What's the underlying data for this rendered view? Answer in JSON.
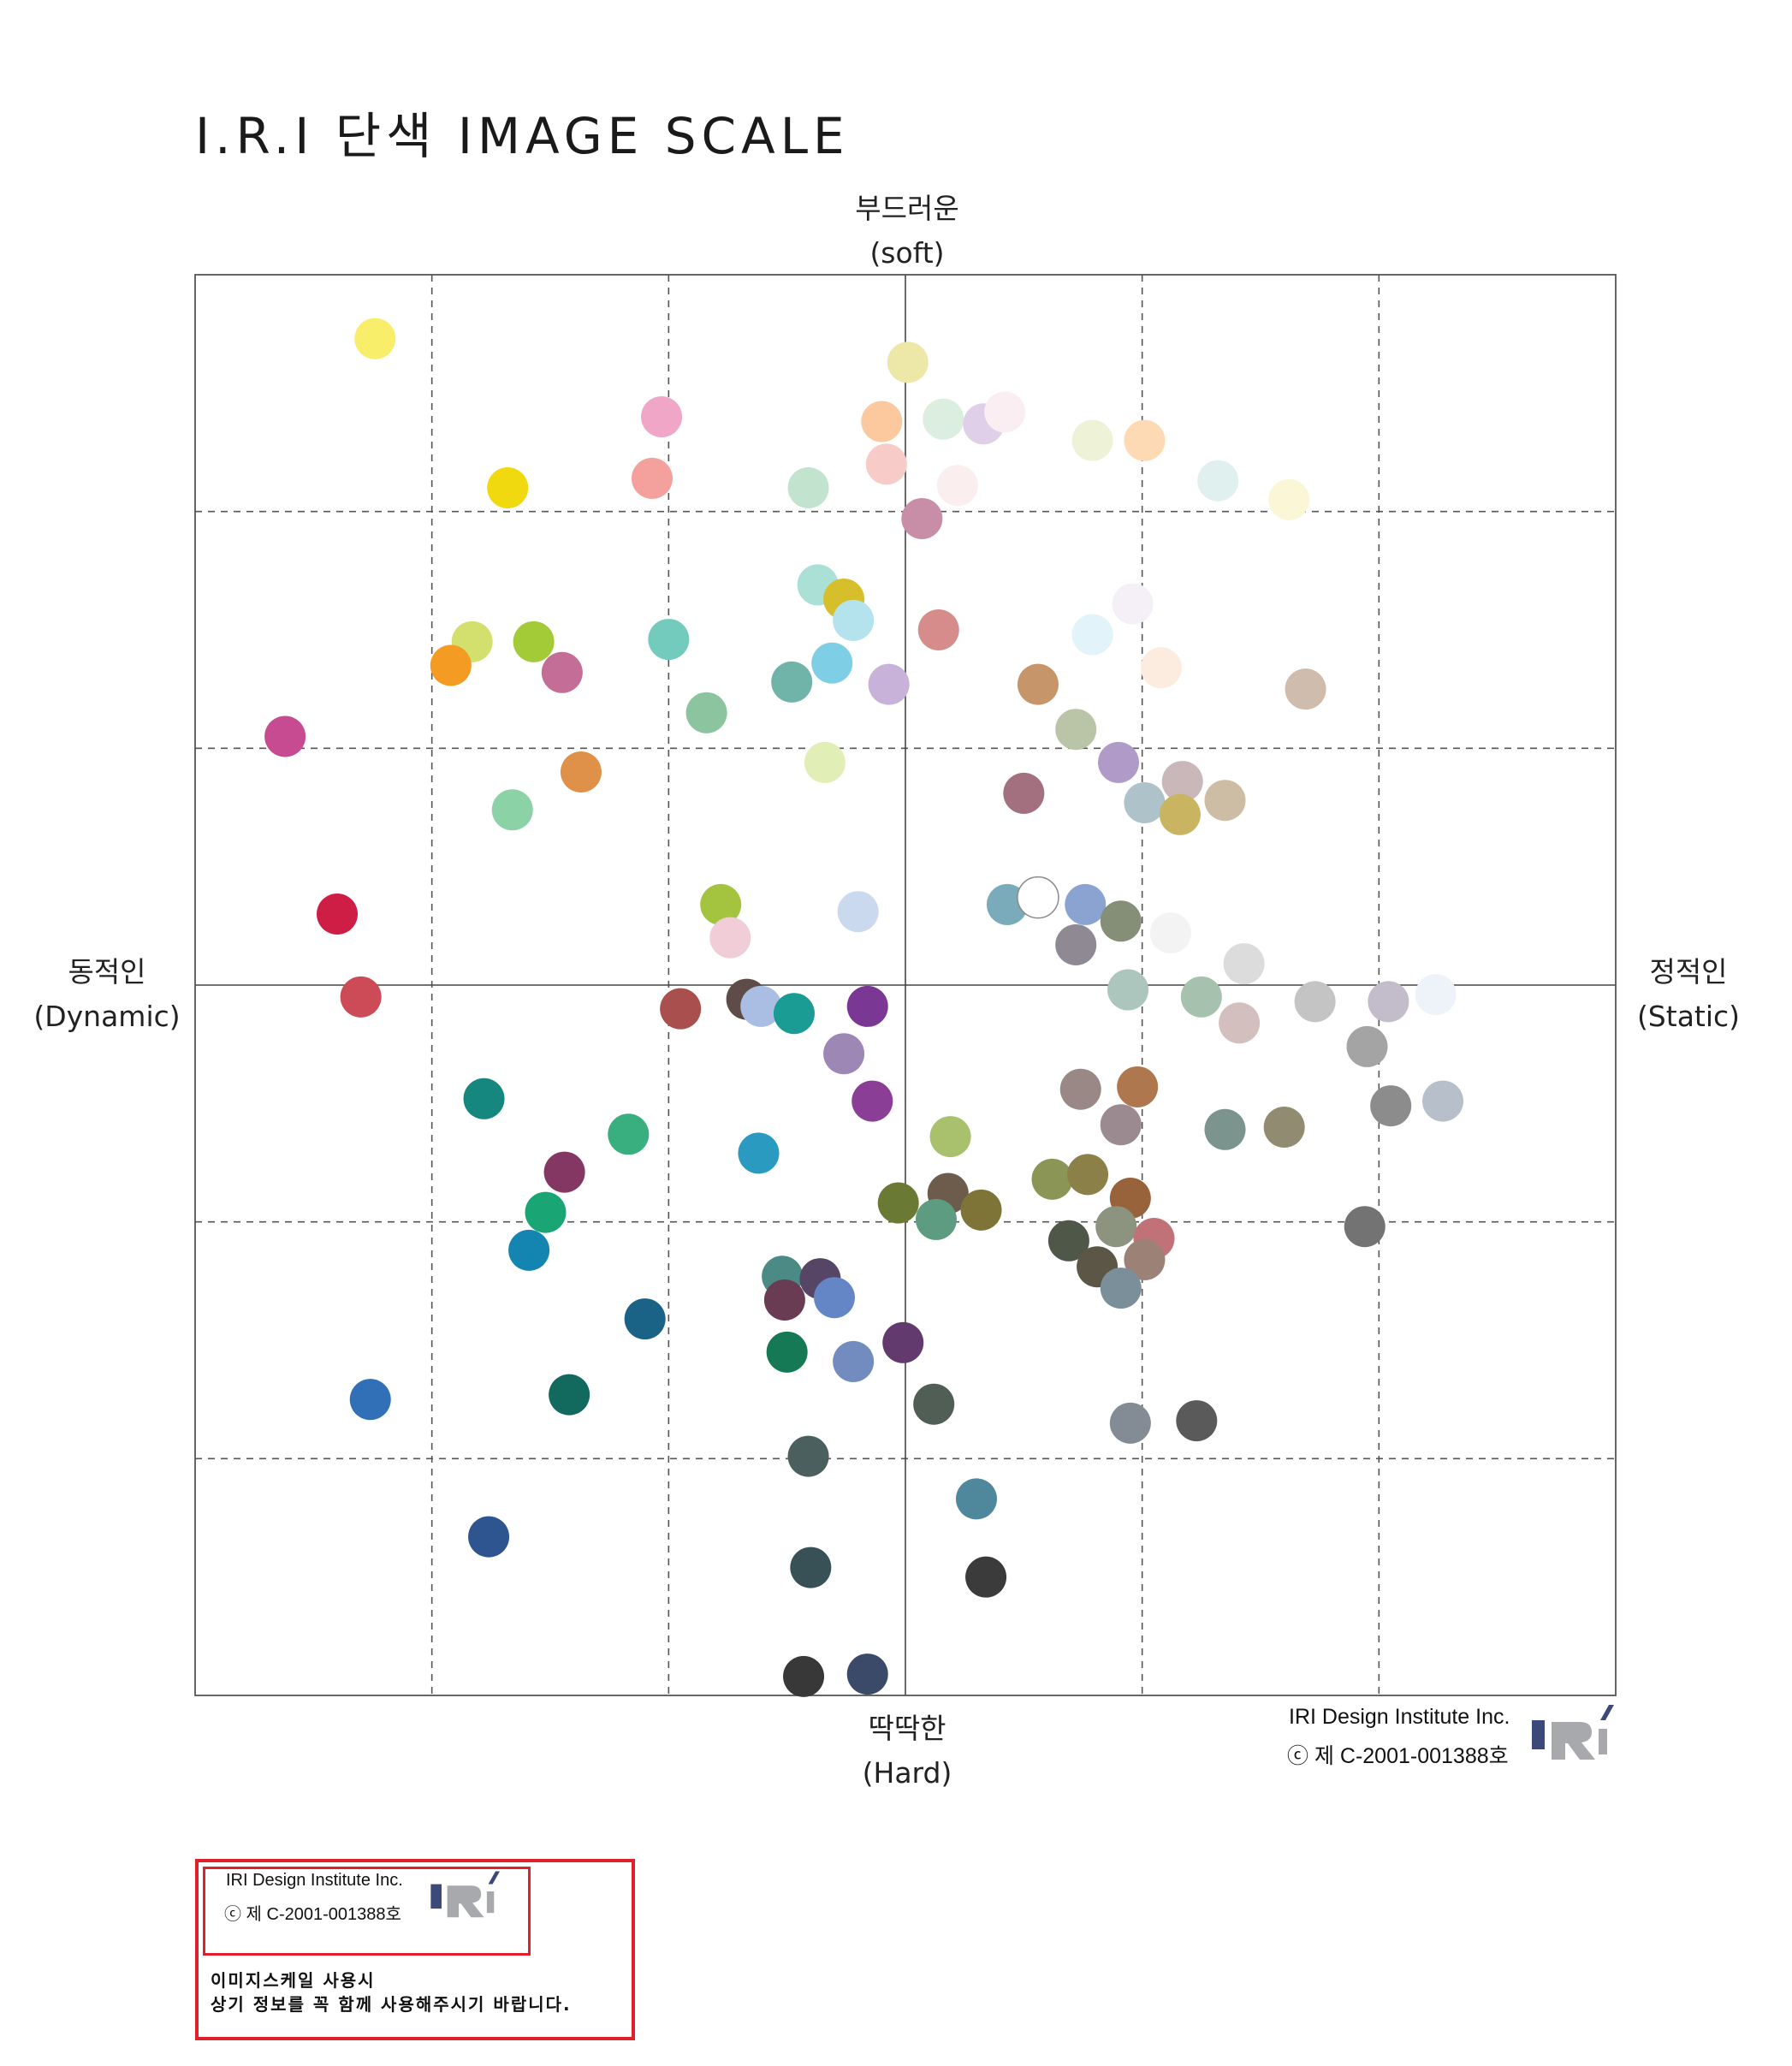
{
  "title": "I.R.I 단색 IMAGE SCALE",
  "axes": {
    "top": {
      "ko": "부드러운",
      "en": "(soft)"
    },
    "bottom": {
      "ko": "딱딱한",
      "en": "(Hard)"
    },
    "left": {
      "ko": "동적인",
      "en": "(Dynamic)"
    },
    "right": {
      "ko": "정적인",
      "en": "(Static)"
    }
  },
  "credit": {
    "company": "IRI Design Institute Inc.",
    "copyright": "ⓒ 제 C-2001-001388호",
    "logo_text": "IRI"
  },
  "notice": {
    "company": "IRI Design Institute Inc.",
    "copyright": "ⓒ 제 C-2001-001388호",
    "line1": "이미지스케일 사용시",
    "line2": "상기 정보를 꼭 함께 사용해주시기 바랍니다."
  },
  "colors": {
    "accent": "#e0202a",
    "logo_navy": "#3b4a78",
    "logo_gray": "#a7a9ac",
    "grid": "#555555"
  },
  "chart_data": {
    "type": "scatter",
    "title": "I.R.I 단색 IMAGE SCALE",
    "xlabel": "동적인 (Dynamic) ↔ 정적인 (Static)",
    "ylabel": "딱딱한 (Hard) ↔ 부드러운 (soft)",
    "xlim": [
      -3,
      3
    ],
    "ylim": [
      -3,
      3
    ],
    "grid": "dashed, step 1",
    "points": [
      {
        "x": -2.24,
        "y": 2.73,
        "color": "#f8ee6a"
      },
      {
        "x": 0.01,
        "y": 2.63,
        "color": "#ede7a8"
      },
      {
        "x": -1.03,
        "y": 2.4,
        "color": "#f0a6c6"
      },
      {
        "x": -0.1,
        "y": 2.38,
        "color": "#fcc89d"
      },
      {
        "x": 0.16,
        "y": 2.39,
        "color": "#dbeedf"
      },
      {
        "x": 0.33,
        "y": 2.37,
        "color": "#e0cfe9"
      },
      {
        "x": 0.42,
        "y": 2.42,
        "color": "#fbeef3"
      },
      {
        "x": 0.79,
        "y": 2.3,
        "color": "#eef3d8"
      },
      {
        "x": 1.01,
        "y": 2.3,
        "color": "#fdd9b4"
      },
      {
        "x": -1.68,
        "y": 2.1,
        "color": "#f0d90f"
      },
      {
        "x": -1.07,
        "y": 2.14,
        "color": "#f4a19d"
      },
      {
        "x": -0.08,
        "y": 2.2,
        "color": "#f6cbc8"
      },
      {
        "x": 0.22,
        "y": 2.11,
        "color": "#fbeeee"
      },
      {
        "x": -0.41,
        "y": 2.1,
        "color": "#c2e3cd"
      },
      {
        "x": 1.32,
        "y": 2.13,
        "color": "#dff0ef"
      },
      {
        "x": 1.62,
        "y": 2.05,
        "color": "#fbf6d6"
      },
      {
        "x": 0.07,
        "y": 1.97,
        "color": "#c98ea7"
      },
      {
        "x": -0.37,
        "y": 1.69,
        "color": "#abe0d6"
      },
      {
        "x": -0.26,
        "y": 1.63,
        "color": "#d6bf2a"
      },
      {
        "x": -0.22,
        "y": 1.54,
        "color": "#b4e3ee"
      },
      {
        "x": 0.14,
        "y": 1.5,
        "color": "#d78c8c"
      },
      {
        "x": 0.96,
        "y": 1.61,
        "color": "#f5f0f8"
      },
      {
        "x": 0.79,
        "y": 1.48,
        "color": "#e3f3fa"
      },
      {
        "x": -1.83,
        "y": 1.45,
        "color": "#d4e06e"
      },
      {
        "x": -1.57,
        "y": 1.45,
        "color": "#a3cb38"
      },
      {
        "x": -1.0,
        "y": 1.46,
        "color": "#72cbbd"
      },
      {
        "x": -1.92,
        "y": 1.35,
        "color": "#f49b23"
      },
      {
        "x": -1.45,
        "y": 1.32,
        "color": "#c36d97"
      },
      {
        "x": -0.48,
        "y": 1.28,
        "color": "#6fb3a9"
      },
      {
        "x": -0.31,
        "y": 1.36,
        "color": "#7ecfe6"
      },
      {
        "x": -0.07,
        "y": 1.27,
        "color": "#c8b2d9"
      },
      {
        "x": 0.56,
        "y": 1.27,
        "color": "#c7956a"
      },
      {
        "x": 1.08,
        "y": 1.34,
        "color": "#fcecdf"
      },
      {
        "x": 1.69,
        "y": 1.25,
        "color": "#d0bcad"
      },
      {
        "x": -0.84,
        "y": 1.15,
        "color": "#8cc4a0"
      },
      {
        "x": 0.72,
        "y": 1.08,
        "color": "#b9c5a6"
      },
      {
        "x": -2.62,
        "y": 1.05,
        "color": "#c74b90"
      },
      {
        "x": -1.37,
        "y": 0.9,
        "color": "#df9049"
      },
      {
        "x": -0.34,
        "y": 0.94,
        "color": "#e1eeb6"
      },
      {
        "x": 0.9,
        "y": 0.94,
        "color": "#b09bc8"
      },
      {
        "x": 1.17,
        "y": 0.86,
        "color": "#c9b7ba"
      },
      {
        "x": -1.66,
        "y": 0.74,
        "color": "#8bd2a6"
      },
      {
        "x": 0.5,
        "y": 0.81,
        "color": "#a3707f"
      },
      {
        "x": 1.01,
        "y": 0.77,
        "color": "#adc2c9"
      },
      {
        "x": 1.16,
        "y": 0.72,
        "color": "#c8b461"
      },
      {
        "x": 1.35,
        "y": 0.78,
        "color": "#cdbda5"
      },
      {
        "x": -2.4,
        "y": 0.3,
        "color": "#cf1e45"
      },
      {
        "x": -0.78,
        "y": 0.34,
        "color": "#a4c43f"
      },
      {
        "x": -0.2,
        "y": 0.31,
        "color": "#cbd9ef"
      },
      {
        "x": 0.43,
        "y": 0.34,
        "color": "#7aabbb"
      },
      {
        "x": 0.56,
        "y": 0.37,
        "color": "#ffffff",
        "outline": true
      },
      {
        "x": 0.76,
        "y": 0.34,
        "color": "#8ba3d0"
      },
      {
        "x": 0.91,
        "y": 0.27,
        "color": "#858f78"
      },
      {
        "x": -0.74,
        "y": 0.2,
        "color": "#f1cdd7"
      },
      {
        "x": 0.72,
        "y": 0.17,
        "color": "#8e8993"
      },
      {
        "x": 1.12,
        "y": 0.22,
        "color": "#f3f3f3"
      },
      {
        "x": 1.43,
        "y": 0.09,
        "color": "#dcdcdc"
      },
      {
        "x": -2.3,
        "y": -0.05,
        "color": "#cc4b56"
      },
      {
        "x": -0.95,
        "y": -0.1,
        "color": "#a9504f"
      },
      {
        "x": -0.67,
        "y": -0.06,
        "color": "#5f4c48"
      },
      {
        "x": -0.61,
        "y": -0.09,
        "color": "#a9bee2"
      },
      {
        "x": -0.47,
        "y": -0.12,
        "color": "#1a9c94"
      },
      {
        "x": -0.16,
        "y": -0.09,
        "color": "#7b3794"
      },
      {
        "x": 0.94,
        "y": -0.02,
        "color": "#acc6bd"
      },
      {
        "x": 1.25,
        "y": -0.05,
        "color": "#a6c2ae"
      },
      {
        "x": 1.41,
        "y": -0.16,
        "color": "#d4bfbf"
      },
      {
        "x": 1.73,
        "y": -0.07,
        "color": "#c4c4c4"
      },
      {
        "x": 2.04,
        "y": -0.07,
        "color": "#c3bcca"
      },
      {
        "x": 2.24,
        "y": -0.04,
        "color": "#eef3fa"
      },
      {
        "x": 1.95,
        "y": -0.26,
        "color": "#a4a4a4"
      },
      {
        "x": -0.26,
        "y": -0.29,
        "color": "#9d87b5"
      },
      {
        "x": -1.78,
        "y": -0.48,
        "color": "#16877e"
      },
      {
        "x": -0.14,
        "y": -0.49,
        "color": "#8b3e95"
      },
      {
        "x": 0.74,
        "y": -0.44,
        "color": "#9a8886"
      },
      {
        "x": 0.98,
        "y": -0.43,
        "color": "#ae774e"
      },
      {
        "x": 2.05,
        "y": -0.51,
        "color": "#8c8c8c"
      },
      {
        "x": 2.27,
        "y": -0.49,
        "color": "#b7bfcb"
      },
      {
        "x": -1.17,
        "y": -0.63,
        "color": "#39ae7e"
      },
      {
        "x": 0.19,
        "y": -0.64,
        "color": "#a9c16d"
      },
      {
        "x": 0.91,
        "y": -0.59,
        "color": "#9b8a90"
      },
      {
        "x": 1.35,
        "y": -0.61,
        "color": "#7b948e"
      },
      {
        "x": 1.6,
        "y": -0.6,
        "color": "#918b71"
      },
      {
        "x": -0.62,
        "y": -0.71,
        "color": "#2a9ac0"
      },
      {
        "x": -1.44,
        "y": -0.79,
        "color": "#843763"
      },
      {
        "x": 0.62,
        "y": -0.82,
        "color": "#8a9556"
      },
      {
        "x": 0.77,
        "y": -0.8,
        "color": "#8c8049"
      },
      {
        "x": -0.03,
        "y": -0.92,
        "color": "#6a7a35"
      },
      {
        "x": 0.18,
        "y": -0.88,
        "color": "#6d5b4c"
      },
      {
        "x": 0.32,
        "y": -0.95,
        "color": "#7e7437"
      },
      {
        "x": 0.95,
        "y": -0.9,
        "color": "#98623b"
      },
      {
        "x": -1.52,
        "y": -0.96,
        "color": "#1aa574"
      },
      {
        "x": 0.13,
        "y": -0.99,
        "color": "#5d9c80"
      },
      {
        "x": 0.89,
        "y": -1.02,
        "color": "#8c947f"
      },
      {
        "x": 1.05,
        "y": -1.07,
        "color": "#c17279"
      },
      {
        "x": -1.59,
        "y": -1.12,
        "color": "#1484b0"
      },
      {
        "x": 0.69,
        "y": -1.08,
        "color": "#4f5749"
      },
      {
        "x": 1.01,
        "y": -1.16,
        "color": "#9b8176"
      },
      {
        "x": 0.81,
        "y": -1.19,
        "color": "#5b5645"
      },
      {
        "x": 1.94,
        "y": -1.02,
        "color": "#737373"
      },
      {
        "x": -0.52,
        "y": -1.23,
        "color": "#4c8a86"
      },
      {
        "x": -0.36,
        "y": -1.24,
        "color": "#574565"
      },
      {
        "x": -0.51,
        "y": -1.33,
        "color": "#6a3c54"
      },
      {
        "x": -0.3,
        "y": -1.32,
        "color": "#6486c6"
      },
      {
        "x": 0.91,
        "y": -1.28,
        "color": "#7b8f9b"
      },
      {
        "x": -1.1,
        "y": -1.41,
        "color": "#1a6387"
      },
      {
        "x": -0.5,
        "y": -1.55,
        "color": "#157955"
      },
      {
        "x": -0.22,
        "y": -1.59,
        "color": "#728cbf"
      },
      {
        "x": -0.01,
        "y": -1.51,
        "color": "#633a6d"
      },
      {
        "x": -2.26,
        "y": -1.75,
        "color": "#3170b7"
      },
      {
        "x": -1.42,
        "y": -1.73,
        "color": "#126a5f"
      },
      {
        "x": 0.12,
        "y": -1.77,
        "color": "#515e55"
      },
      {
        "x": 0.95,
        "y": -1.85,
        "color": "#838b94"
      },
      {
        "x": 1.23,
        "y": -1.84,
        "color": "#5a5a5a"
      },
      {
        "x": -0.41,
        "y": -1.99,
        "color": "#4b605e"
      },
      {
        "x": 0.3,
        "y": -2.17,
        "color": "#4f879c"
      },
      {
        "x": -1.76,
        "y": -2.33,
        "color": "#2e5590"
      },
      {
        "x": -0.4,
        "y": -2.46,
        "color": "#375157"
      },
      {
        "x": 0.34,
        "y": -2.5,
        "color": "#3b3b3b"
      },
      {
        "x": -0.43,
        "y": -2.92,
        "color": "#383838"
      },
      {
        "x": -0.16,
        "y": -2.91,
        "color": "#3b4a69"
      }
    ]
  }
}
